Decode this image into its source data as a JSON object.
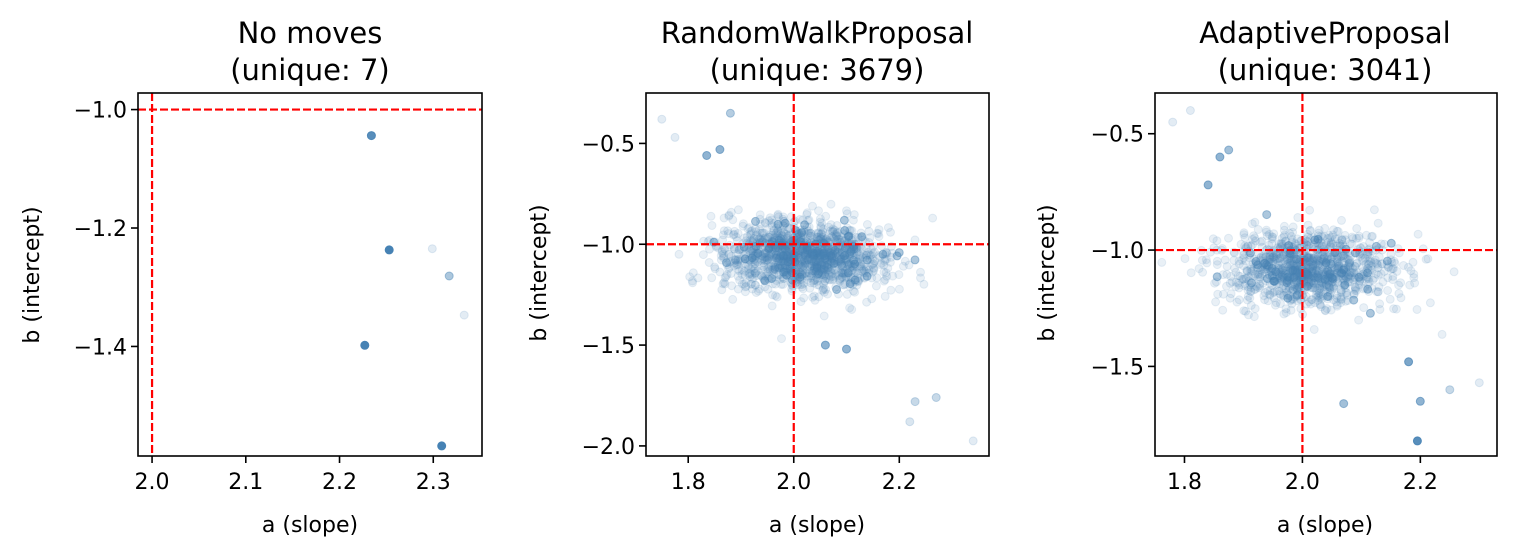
{
  "colors": {
    "points": "#4682b4",
    "reference": "#ff0000",
    "axes": "#000000",
    "background": "#ffffff"
  },
  "chart_data": [
    {
      "type": "scatter",
      "title_line1": "No moves",
      "title_line2": "(unique: 7)",
      "xlabel": "a (slope)",
      "ylabel": "b (intercept)",
      "xlim": [
        1.985,
        2.352
      ],
      "ylim": [
        -1.585,
        -0.972
      ],
      "xticks": [
        2.0,
        2.1,
        2.2,
        2.3
      ],
      "xtick_labels": [
        "2.0",
        "2.1",
        "2.2",
        "2.3"
      ],
      "yticks": [
        -1.0,
        -1.2,
        -1.4
      ],
      "ytick_labels": [
        "−1.0",
        "−1.2",
        "−1.4"
      ],
      "reference_lines": {
        "a": 2.0,
        "b": -1.0
      },
      "points": [
        {
          "a": 2.234,
          "b": -1.044,
          "alpha": 0.9
        },
        {
          "a": 2.253,
          "b": -1.237,
          "alpha": 1.0
        },
        {
          "a": 2.227,
          "b": -1.398,
          "alpha": 1.0
        },
        {
          "a": 2.309,
          "b": -1.568,
          "alpha": 1.0
        },
        {
          "a": 2.299,
          "b": -1.235,
          "alpha": 0.15
        },
        {
          "a": 2.317,
          "b": -1.281,
          "alpha": 0.45
        },
        {
          "a": 2.333,
          "b": -1.347,
          "alpha": 0.15
        }
      ]
    },
    {
      "type": "scatter",
      "title_line1": "RandomWalkProposal",
      "title_line2": "(unique: 3679)",
      "xlabel": "a (slope)",
      "ylabel": "b (intercept)",
      "xlim": [
        1.72,
        2.37
      ],
      "ylim": [
        -2.05,
        -0.25
      ],
      "xticks": [
        1.8,
        2.0,
        2.2
      ],
      "xtick_labels": [
        "1.8",
        "2.0",
        "2.2"
      ],
      "yticks": [
        -0.5,
        -1.0,
        -1.5,
        -2.0
      ],
      "ytick_labels": [
        "−0.5",
        "−1.0",
        "−1.5",
        "−2.0"
      ],
      "reference_lines": {
        "a": 2.0,
        "b": -1.0
      },
      "cloud": {
        "count": 1400,
        "center_a": 2.015,
        "center_b": -1.06,
        "slope": -4.9,
        "sd_major": 0.085,
        "sd_minor": 0.075,
        "seed": 11,
        "alpha": 0.12
      },
      "points": [
        {
          "a": 1.75,
          "b": -0.38,
          "alpha": 0.15
        },
        {
          "a": 1.775,
          "b": -0.47,
          "alpha": 0.15
        },
        {
          "a": 1.835,
          "b": -0.56,
          "alpha": 0.6
        },
        {
          "a": 1.86,
          "b": -0.53,
          "alpha": 0.6
        },
        {
          "a": 1.88,
          "b": -0.35,
          "alpha": 0.4
        },
        {
          "a": 2.27,
          "b": -1.76,
          "alpha": 0.3
        },
        {
          "a": 2.23,
          "b": -1.78,
          "alpha": 0.3
        },
        {
          "a": 2.22,
          "b": -1.88,
          "alpha": 0.2
        },
        {
          "a": 2.34,
          "b": -1.975,
          "alpha": 0.15
        },
        {
          "a": 2.06,
          "b": -1.5,
          "alpha": 0.6
        },
        {
          "a": 2.1,
          "b": -1.52,
          "alpha": 0.6
        }
      ]
    },
    {
      "type": "scatter",
      "title_line1": "AdaptiveProposal",
      "title_line2": "(unique: 3041)",
      "xlabel": "a (slope)",
      "ylabel": "b (intercept)",
      "xlim": [
        1.75,
        2.33
      ],
      "ylim": [
        -1.885,
        -0.325
      ],
      "xticks": [
        1.8,
        2.0,
        2.2
      ],
      "xtick_labels": [
        "1.8",
        "2.0",
        "2.2"
      ],
      "yticks": [
        -0.5,
        -1.0,
        -1.5
      ],
      "ytick_labels": [
        "−0.5",
        "−1.0",
        "−1.5"
      ],
      "reference_lines": {
        "a": 2.0,
        "b": -1.0
      },
      "cloud": {
        "count": 1150,
        "center_a": 2.01,
        "center_b": -1.08,
        "slope": -4.6,
        "sd_major": 0.08,
        "sd_minor": 0.072,
        "seed": 29,
        "alpha": 0.12
      },
      "points": [
        {
          "a": 1.78,
          "b": -0.45,
          "alpha": 0.15
        },
        {
          "a": 1.81,
          "b": -0.4,
          "alpha": 0.15
        },
        {
          "a": 1.86,
          "b": -0.6,
          "alpha": 0.6
        },
        {
          "a": 1.875,
          "b": -0.57,
          "alpha": 0.5
        },
        {
          "a": 1.84,
          "b": -0.72,
          "alpha": 0.6
        },
        {
          "a": 2.195,
          "b": -1.82,
          "alpha": 0.9
        },
        {
          "a": 2.2,
          "b": -1.65,
          "alpha": 0.6
        },
        {
          "a": 2.3,
          "b": -1.57,
          "alpha": 0.15
        },
        {
          "a": 2.25,
          "b": -1.6,
          "alpha": 0.3
        },
        {
          "a": 2.18,
          "b": -1.48,
          "alpha": 0.7
        },
        {
          "a": 2.07,
          "b": -1.66,
          "alpha": 0.5
        }
      ]
    }
  ]
}
